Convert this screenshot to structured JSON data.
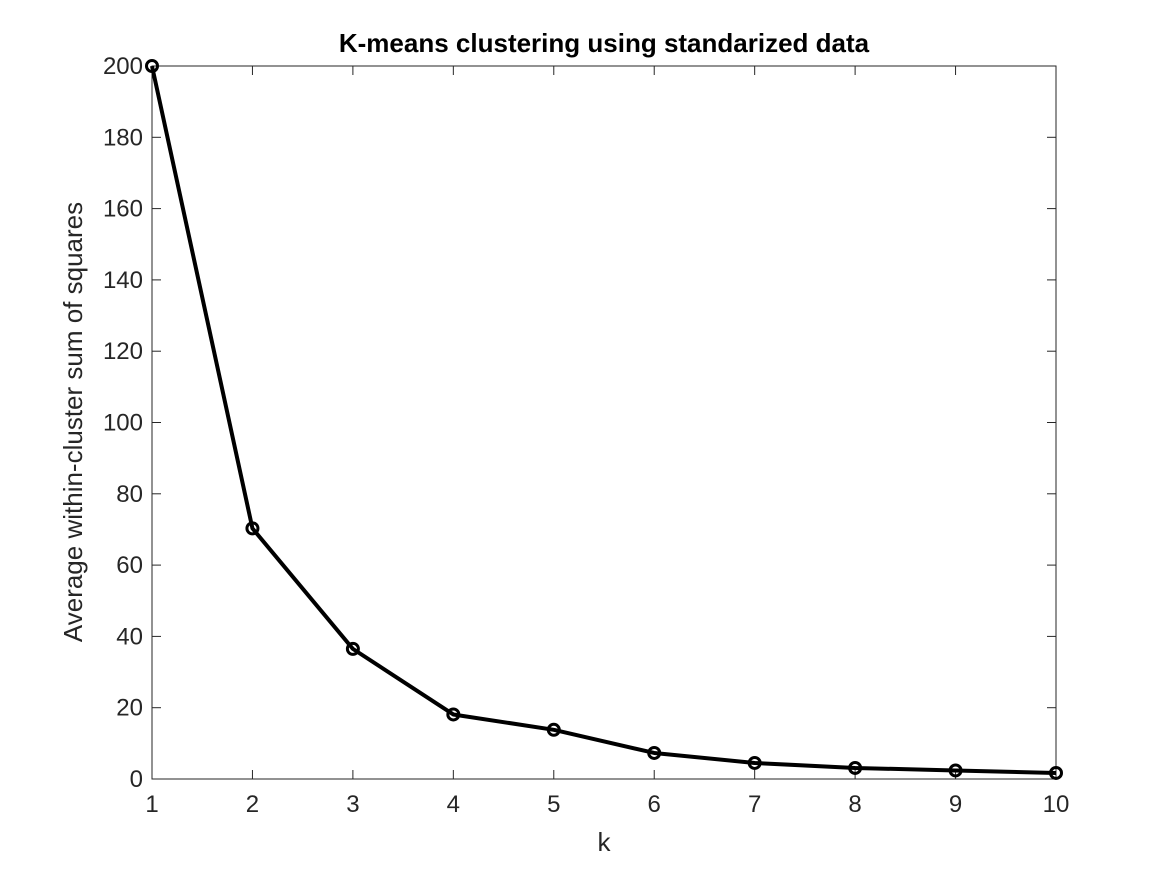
{
  "chart_data": {
    "type": "line",
    "title": "K-means clustering using standarized data",
    "xlabel": "k",
    "ylabel": "Average within-cluster sum of squares",
    "xlim": [
      1,
      10
    ],
    "ylim": [
      0,
      200
    ],
    "x_ticks": [
      1,
      2,
      3,
      4,
      5,
      6,
      7,
      8,
      9,
      10
    ],
    "y_ticks": [
      0,
      20,
      40,
      60,
      80,
      100,
      120,
      140,
      160,
      180,
      200
    ],
    "grid": false,
    "marker": "circle",
    "series": [
      {
        "x": [
          1,
          2,
          3,
          4,
          5,
          6,
          7,
          8,
          9,
          10
        ],
        "values": [
          200,
          70.3,
          36.5,
          18.1,
          13.8,
          7.3,
          4.5,
          3.1,
          2.4,
          1.7
        ],
        "color": "#000000"
      }
    ]
  }
}
